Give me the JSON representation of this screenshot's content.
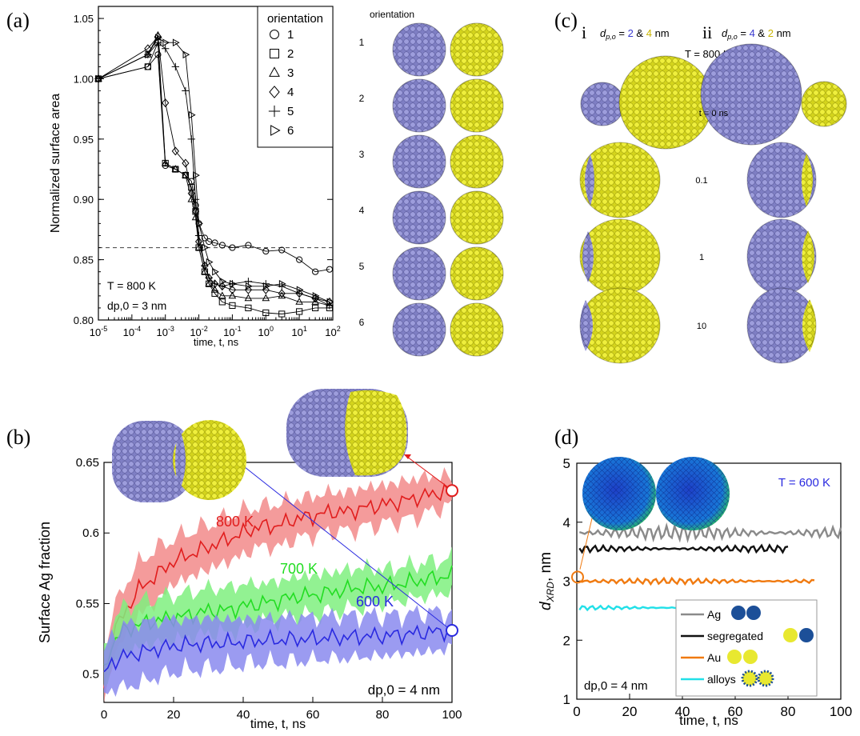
{
  "colors": {
    "ag": "#8c8cd0",
    "ag_dark": "#4f4f90",
    "au": "#e8e830",
    "au_dark": "#9a9a10",
    "red": "#e11d1d",
    "red_band": "#f28a8a",
    "green": "#22dd22",
    "green_band": "#7ff07f",
    "blue": "#2a2ae0",
    "blue_band": "#8a8aee",
    "gray": "#8a8a8a",
    "black": "#111111",
    "orange": "#f07a10",
    "cyan": "#22e0e8",
    "dash": "#555555"
  },
  "panels": {
    "a": {
      "letter": "(a)",
      "orientation_header": "orientation",
      "orientation_numbers": [
        "1",
        "2",
        "3",
        "4",
        "5",
        "6"
      ],
      "annotation_T": "T = 800 K",
      "annotation_d": "dp,0 = 3 nm"
    },
    "b": {
      "letter": "(b)"
    },
    "c": {
      "letter": "(c)",
      "col_i": "i",
      "col_ii": "ii",
      "col_i_label": "dp,o = 2 & 4 nm",
      "col_ii_label": "dp,o = 4 & 2 nm",
      "temperature": "T = 800 K",
      "times": [
        "t = 0 ns",
        "0.1",
        "1",
        "10"
      ]
    },
    "d": {
      "letter": "(d)",
      "temperature": "T = 600 K",
      "annotation_d": "dp,0 = 4 nm"
    }
  },
  "chart_data": [
    {
      "panel": "a",
      "type": "line",
      "xscale": "log",
      "xlabel": "time, t, ns",
      "ylabel": "Normalized surface area",
      "xlim": [
        1e-05,
        100
      ],
      "ylim": [
        0.8,
        1.06
      ],
      "xticks": [
        "10-5",
        "10-4",
        "10-3",
        "10-2",
        "10-1",
        "100",
        "101",
        "102"
      ],
      "yticks": [
        "0.80",
        "0.85",
        "0.90",
        "0.95",
        "1.00",
        "1.05"
      ],
      "reference_line": 0.86,
      "legend": {
        "title": "orientation",
        "position": "top-right",
        "entries": [
          "1",
          "2",
          "3",
          "4",
          "5",
          "6"
        ]
      },
      "series": [
        {
          "name": "1",
          "marker": "circle",
          "x": [
            1e-05,
            0.0003,
            0.0006,
            0.001,
            0.002,
            0.004,
            0.006,
            0.008,
            0.01,
            0.015,
            0.02,
            0.03,
            0.05,
            0.1,
            0.3,
            1,
            3,
            10,
            30,
            80
          ],
          "y": [
            1.0,
            1.01,
            1.02,
            0.928,
            0.925,
            0.92,
            0.915,
            0.895,
            0.88,
            0.868,
            0.865,
            0.864,
            0.862,
            0.86,
            0.862,
            0.857,
            0.858,
            0.85,
            0.84,
            0.842
          ]
        },
        {
          "name": "2",
          "marker": "square",
          "x": [
            1e-05,
            0.0003,
            0.0006,
            0.001,
            0.002,
            0.004,
            0.006,
            0.008,
            0.01,
            0.015,
            0.02,
            0.03,
            0.05,
            0.1,
            0.3,
            1,
            3,
            10,
            30,
            80
          ],
          "y": [
            1.0,
            1.01,
            1.03,
            0.93,
            0.925,
            0.92,
            0.91,
            0.89,
            0.86,
            0.84,
            0.83,
            0.822,
            0.815,
            0.812,
            0.81,
            0.806,
            0.805,
            0.807,
            0.81,
            0.81
          ]
        },
        {
          "name": "3",
          "marker": "triangle",
          "x": [
            1e-05,
            0.0003,
            0.0006,
            0.001,
            0.002,
            0.004,
            0.006,
            0.008,
            0.01,
            0.015,
            0.02,
            0.03,
            0.05,
            0.1,
            0.3,
            1,
            3,
            10,
            30,
            80
          ],
          "y": [
            1.0,
            1.02,
            1.036,
            0.93,
            0.925,
            0.92,
            0.9,
            0.885,
            0.86,
            0.84,
            0.83,
            0.825,
            0.82,
            0.82,
            0.818,
            0.818,
            0.82,
            0.815,
            0.815,
            0.812
          ]
        },
        {
          "name": "4",
          "marker": "diamond",
          "x": [
            1e-05,
            0.0003,
            0.0006,
            0.001,
            0.002,
            0.004,
            0.006,
            0.008,
            0.01,
            0.015,
            0.02,
            0.03,
            0.05,
            0.1,
            0.3,
            1,
            3,
            10,
            30,
            80
          ],
          "y": [
            1.0,
            1.025,
            1.035,
            0.98,
            0.94,
            0.93,
            0.905,
            0.89,
            0.865,
            0.845,
            0.835,
            0.83,
            0.828,
            0.825,
            0.825,
            0.825,
            0.822,
            0.822,
            0.818,
            0.815
          ]
        },
        {
          "name": "5",
          "marker": "plus",
          "x": [
            1e-05,
            0.0003,
            0.0006,
            0.001,
            0.002,
            0.004,
            0.006,
            0.008,
            0.01,
            0.015,
            0.02,
            0.03,
            0.05,
            0.1,
            0.3,
            1,
            3,
            10,
            30,
            80
          ],
          "y": [
            1.0,
            1.02,
            1.03,
            1.025,
            1.01,
            0.99,
            0.95,
            0.9,
            0.87,
            0.845,
            0.835,
            0.83,
            0.828,
            0.83,
            0.832,
            0.83,
            0.828,
            0.822,
            0.818,
            0.812
          ]
        },
        {
          "name": "6",
          "marker": "triangle-right",
          "x": [
            1e-05,
            0.0003,
            0.0006,
            0.001,
            0.002,
            0.004,
            0.006,
            0.008,
            0.01,
            0.015,
            0.02,
            0.03,
            0.05,
            0.1,
            0.3,
            1,
            3,
            10,
            30,
            80
          ],
          "y": [
            1.0,
            1.02,
            1.034,
            1.03,
            1.03,
            1.02,
            0.97,
            0.92,
            0.88,
            0.86,
            0.848,
            0.84,
            0.832,
            0.83,
            0.828,
            0.828,
            0.83,
            0.825,
            0.82,
            0.815
          ]
        }
      ]
    },
    {
      "panel": "b",
      "type": "area",
      "xlabel": "time, t, ns",
      "ylabel": "Surface Ag fraction",
      "xlim": [
        0,
        100
      ],
      "ylim": [
        0.48,
        0.65
      ],
      "xticks": [
        0,
        20,
        40,
        60,
        80,
        100
      ],
      "yticks": [
        0.5,
        0.55,
        0.6,
        0.65
      ],
      "annotation": "dp,0 = 4 nm",
      "series": [
        {
          "name": "800 K",
          "x": [
            0,
            2,
            5,
            10,
            15,
            20,
            25,
            30,
            35,
            40,
            45,
            50,
            55,
            60,
            65,
            70,
            75,
            80,
            85,
            90,
            95,
            100
          ],
          "y": [
            0.49,
            0.525,
            0.54,
            0.56,
            0.57,
            0.58,
            0.585,
            0.59,
            0.595,
            0.6,
            0.605,
            0.605,
            0.61,
            0.612,
            0.615,
            0.615,
            0.618,
            0.62,
            0.622,
            0.625,
            0.628,
            0.63
          ],
          "band": [
            0.01,
            0.012,
            0.015,
            0.015,
            0.015,
            0.012,
            0.012,
            0.012,
            0.012,
            0.012,
            0.01,
            0.012,
            0.01,
            0.01,
            0.01,
            0.01,
            0.01,
            0.01,
            0.01,
            0.01,
            0.008,
            0.006
          ]
        },
        {
          "name": "700 K",
          "x": [
            0,
            2,
            5,
            10,
            15,
            20,
            25,
            30,
            35,
            40,
            45,
            50,
            55,
            60,
            65,
            70,
            75,
            80,
            85,
            90,
            95,
            100
          ],
          "y": [
            0.5,
            0.52,
            0.53,
            0.535,
            0.538,
            0.54,
            0.542,
            0.545,
            0.545,
            0.548,
            0.55,
            0.552,
            0.555,
            0.556,
            0.558,
            0.56,
            0.562,
            0.562,
            0.564,
            0.566,
            0.568,
            0.57
          ],
          "band": [
            0.01,
            0.012,
            0.012,
            0.012,
            0.012,
            0.012,
            0.012,
            0.012,
            0.012,
            0.012,
            0.01,
            0.01,
            0.01,
            0.01,
            0.01,
            0.01,
            0.01,
            0.008,
            0.008,
            0.008,
            0.008,
            0.008
          ]
        },
        {
          "name": "600 K",
          "x": [
            0,
            2,
            5,
            10,
            15,
            20,
            25,
            30,
            35,
            40,
            45,
            50,
            55,
            60,
            65,
            70,
            75,
            80,
            85,
            90,
            95,
            100
          ],
          "y": [
            0.5,
            0.508,
            0.512,
            0.515,
            0.518,
            0.52,
            0.521,
            0.522,
            0.522,
            0.523,
            0.524,
            0.524,
            0.525,
            0.525,
            0.526,
            0.526,
            0.527,
            0.527,
            0.528,
            0.529,
            0.53,
            0.531
          ],
          "band": [
            0.01,
            0.015,
            0.018,
            0.018,
            0.016,
            0.015,
            0.014,
            0.014,
            0.013,
            0.012,
            0.012,
            0.012,
            0.012,
            0.011,
            0.011,
            0.011,
            0.011,
            0.01,
            0.01,
            0.01,
            0.01,
            0.008
          ]
        }
      ]
    },
    {
      "panel": "d",
      "type": "line",
      "xlabel": "time, t, ns",
      "ylabel": "dXRD, nm",
      "xlim": [
        0,
        100
      ],
      "ylim": [
        1,
        5
      ],
      "xticks": [
        0,
        20,
        40,
        60,
        80,
        100
      ],
      "yticks": [
        1,
        2,
        3,
        4,
        5
      ],
      "legend": {
        "position": "bottom-right",
        "entries": [
          "Ag",
          "segregated",
          "Au",
          "alloys"
        ]
      },
      "series": [
        {
          "name": "Ag",
          "x": [
            0,
            100
          ],
          "y": [
            3.8,
            3.8
          ],
          "xrange": [
            0,
            100
          ],
          "mean": 3.82,
          "noise": 0.12
        },
        {
          "name": "segregated",
          "x": [
            0,
            80
          ],
          "y": [
            3.55,
            3.55
          ],
          "xrange": [
            0,
            80
          ],
          "mean": 3.55,
          "noise": 0.06
        },
        {
          "name": "Au",
          "x": [
            0,
            90
          ],
          "y": [
            3.0,
            3.0
          ],
          "xrange": [
            0,
            90
          ],
          "mean": 3.0,
          "noise": 0.05
        },
        {
          "name": "alloys",
          "x": [
            0,
            80
          ],
          "y": [
            2.55,
            2.55
          ],
          "xrange": [
            0,
            80
          ],
          "mean": 2.55,
          "noise": 0.04
        }
      ]
    }
  ]
}
